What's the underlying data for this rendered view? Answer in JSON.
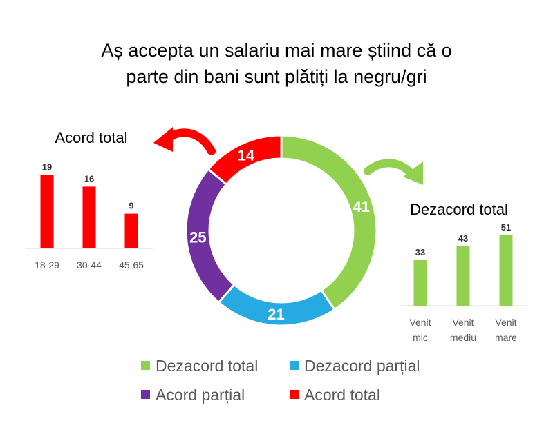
{
  "title_line1": "Aș accepta un salariu mai mare știind că o",
  "title_line2": "parte din bani sunt plătiți la negru/gri",
  "chart_data": [
    {
      "type": "pie",
      "variant": "donut",
      "categories": [
        "Dezacord total",
        "Dezacord parțial",
        "Acord parțial",
        "Acord total"
      ],
      "values": [
        41,
        21,
        25,
        14
      ],
      "colors": [
        "#92d050",
        "#27aae1",
        "#7030a0",
        "#ff0000"
      ],
      "legend": "bottom"
    },
    {
      "type": "bar",
      "title": "Acord total",
      "categories": [
        "18-29",
        "30-44",
        "45-65"
      ],
      "values": [
        19,
        16,
        9
      ],
      "color": "#ff0000"
    },
    {
      "type": "bar",
      "title": "Dezacord total",
      "categories": [
        [
          "Venit",
          "mic"
        ],
        [
          "Venit",
          "mediu"
        ],
        [
          "Venit",
          "mare"
        ]
      ],
      "values": [
        33,
        43,
        51
      ],
      "color": "#92d050"
    }
  ]
}
